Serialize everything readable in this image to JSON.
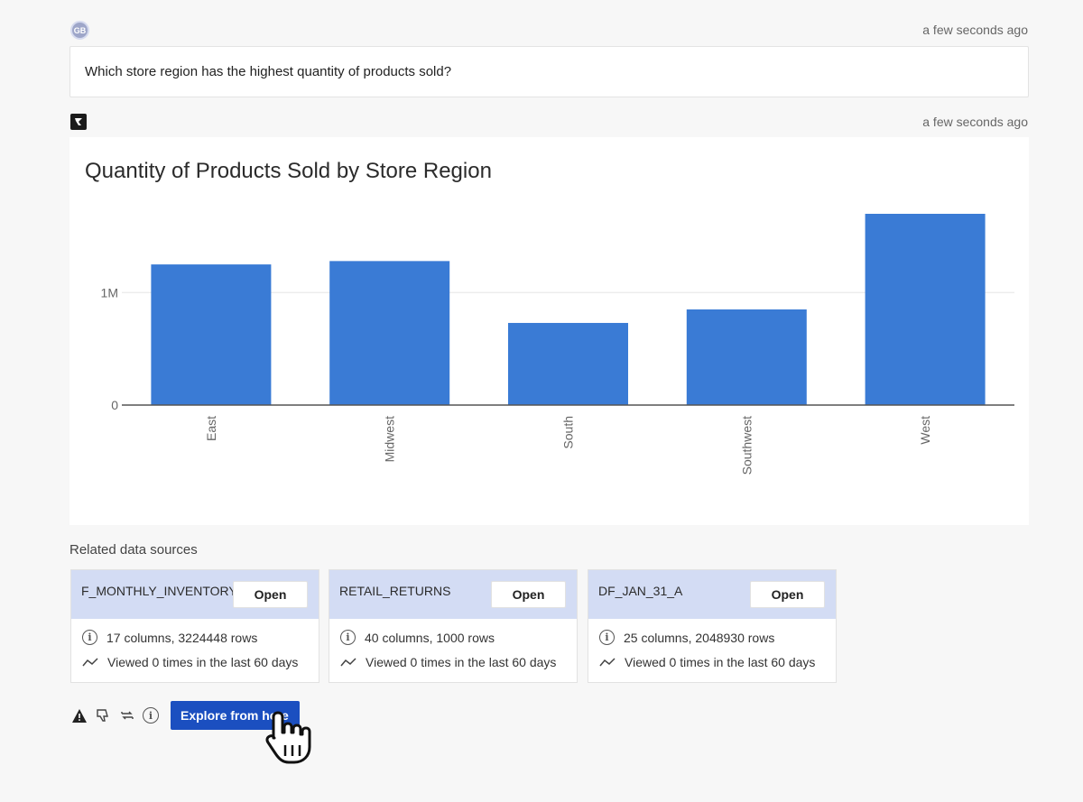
{
  "user_message": {
    "avatar_initials": "GB",
    "timestamp": "a few seconds ago",
    "question": "Which store region has the highest quantity of products sold?"
  },
  "bot_message": {
    "icon": "bot-logo-icon",
    "timestamp": "a few seconds ago"
  },
  "chart_data": {
    "type": "bar",
    "title": "Quantity of Products Sold by Store Region",
    "xlabel": "",
    "ylabel": "",
    "categories": [
      "East",
      "Midwest",
      "South",
      "Southwest",
      "West"
    ],
    "values": [
      1250000,
      1280000,
      730000,
      850000,
      1700000
    ],
    "yticks": [
      {
        "value": 0,
        "label": "0"
      },
      {
        "value": 1000000,
        "label": "1M"
      }
    ],
    "ylim": [
      0,
      1700000
    ],
    "bar_color": "#3a7bd5",
    "grid": true
  },
  "related": {
    "label": "Related data sources",
    "sources": [
      {
        "name": "F_MONTHLY_INVENTORY",
        "open_label": "Open",
        "details": "17 columns, 3224448 rows",
        "views": "Viewed 0 times in the last 60 days"
      },
      {
        "name": "RETAIL_RETURNS",
        "open_label": "Open",
        "details": "40 columns, 1000 rows",
        "views": "Viewed 0 times in the last 60 days"
      },
      {
        "name": "DF_JAN_31_A",
        "open_label": "Open",
        "details": "25 columns, 2048930 rows",
        "views": "Viewed 0 times in the last 60 days"
      }
    ]
  },
  "actions": {
    "icons": [
      "warning-icon",
      "thumbs-down-icon",
      "refresh-icon",
      "info-icon"
    ],
    "explore_label": "Explore from here"
  },
  "colors": {
    "accent": "#1b4fc0",
    "card_header": "#d3dcf4"
  }
}
